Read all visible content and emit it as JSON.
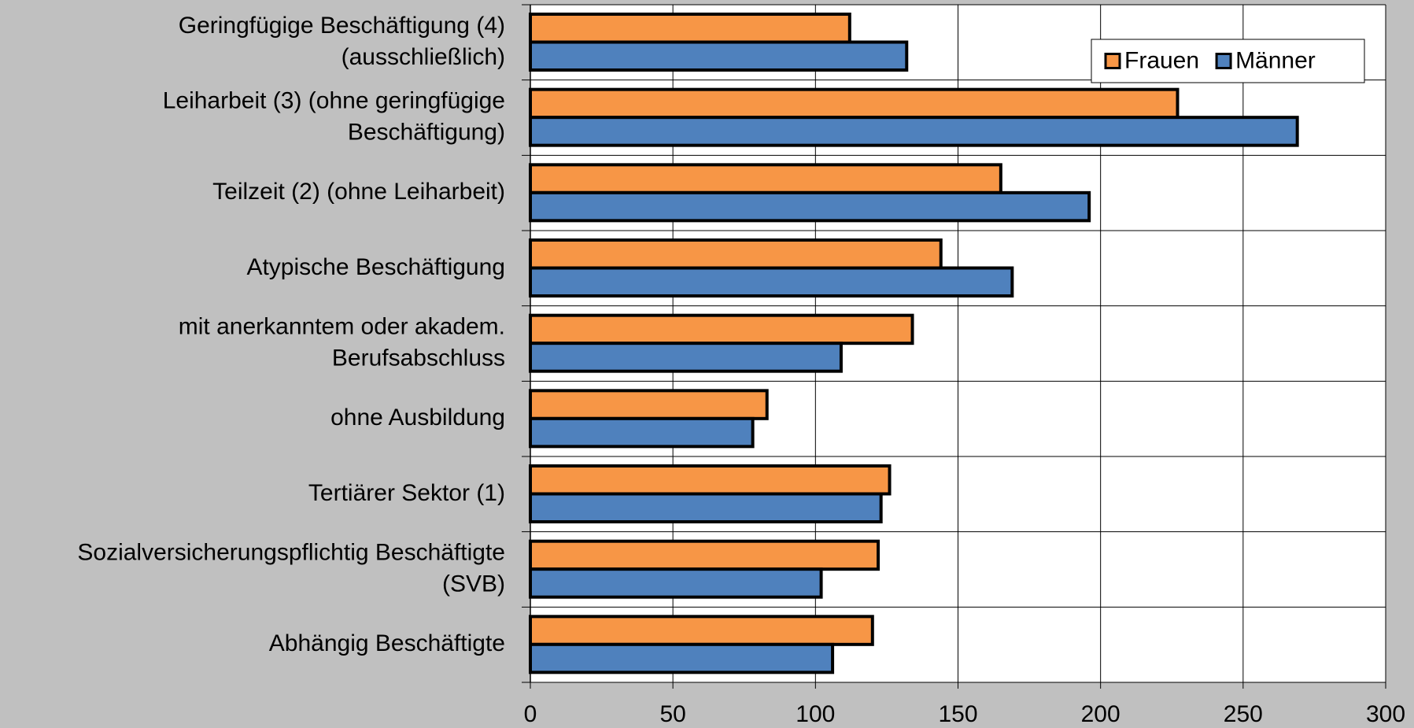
{
  "chart_data": {
    "type": "hbar",
    "categories": [
      "Geringfügige Beschäftigung (4)\n(ausschließlich)",
      "Leiharbeit (3) (ohne geringfügige\nBeschäftigung)",
      "Teilzeit (2) (ohne Leiharbeit)",
      "Atypische Beschäftigung",
      "mit anerkanntem oder akadem.\nBerufsabschluss",
      "ohne Ausbildung",
      "Tertiärer Sektor (1)",
      "Sozialversicherungspflichtig Beschäftigte\n(SVB)",
      "Abhängig Beschäftigte"
    ],
    "series": [
      {
        "name": "Frauen",
        "color": "#f79646",
        "values": [
          112,
          227,
          165,
          144,
          134,
          83,
          126,
          122,
          120
        ]
      },
      {
        "name": "Männer",
        "color": "#4f81bd",
        "values": [
          132,
          269,
          196,
          169,
          109,
          78,
          123,
          102,
          106
        ]
      }
    ],
    "xlim": [
      0,
      300
    ],
    "xticks": [
      0,
      50,
      100,
      150,
      200,
      250,
      300
    ],
    "grid": true,
    "legend": "top-right"
  }
}
